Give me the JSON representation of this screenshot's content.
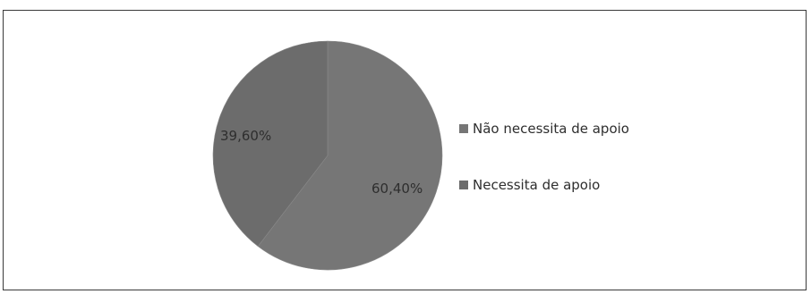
{
  "chart_data": {
    "type": "pie",
    "title": "",
    "slices": [
      {
        "label": "Não necessita de apoio",
        "value": 60.4,
        "display": "60,40%",
        "color": "#767676"
      },
      {
        "label": "Necessita de apoio",
        "value": 39.6,
        "display": "39,60%",
        "color": "#6c6c6c"
      }
    ],
    "legend": {
      "placement": "right",
      "items": [
        "Não necessita de apoio",
        "Necessita de apoio"
      ]
    }
  }
}
